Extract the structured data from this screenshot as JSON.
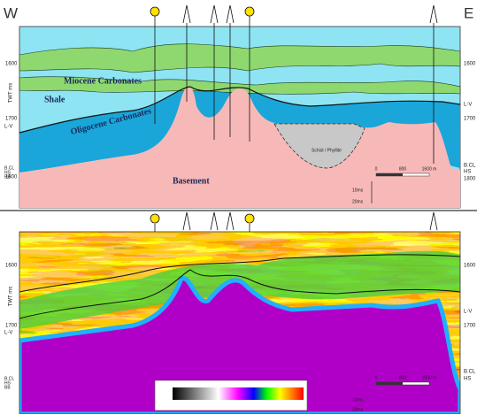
{
  "top_panel": {
    "west": "W",
    "east": "E",
    "y_axis_title": "TWT ms",
    "left_ticks": [
      "1600",
      "1700",
      "1800"
    ],
    "left_horizon_labels": [
      "L-V",
      "B.CL",
      "HS",
      "BB"
    ],
    "right_ticks": [
      "1600",
      "1700",
      "1800"
    ],
    "right_horizon_labels": [
      "L-V",
      "B.CL",
      "HS"
    ],
    "units": [
      "Miocene Carbonates",
      "Shale",
      "Oligocene Carbonates",
      "Basement",
      "Schist / Phyllite"
    ],
    "scale": {
      "distance": [
        "0",
        "800",
        "1600 m"
      ],
      "time": [
        "10ms",
        "20ms"
      ]
    }
  },
  "bottom_panel": {
    "y_axis_title": "TWT ms",
    "left_ticks": [
      "1600",
      "1700"
    ],
    "left_horizon_labels": [
      "L-V",
      "B.CL",
      "HS",
      "BB"
    ],
    "right_ticks": [
      "1600",
      "1700"
    ],
    "right_horizon_labels": [
      "L-V",
      "B.CL",
      "HS"
    ],
    "scale": {
      "distance": [
        "0",
        "800",
        "1600 m"
      ],
      "time": [
        "10ms",
        "20ms"
      ]
    }
  }
}
